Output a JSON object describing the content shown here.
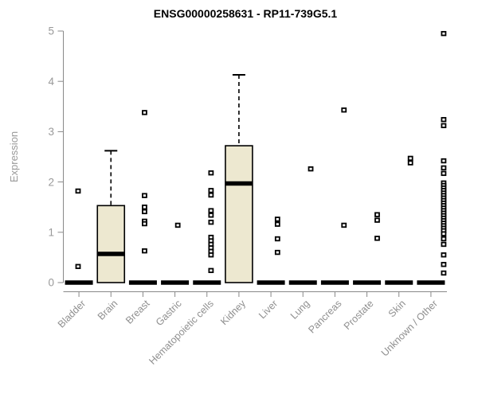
{
  "title": "ENSG00000258631 - RP11-739G5.1",
  "chart_data": {
    "type": "boxplot",
    "title": "ENSG00000258631 - RP11-739G5.1",
    "ylabel": "Expression",
    "xlabel": "",
    "ylim": [
      0,
      5
    ],
    "yticks": [
      0,
      1,
      2,
      3,
      4,
      5
    ],
    "grid": false,
    "legend": "none",
    "categories": [
      "Bladder",
      "Brain",
      "Breast",
      "Gastric",
      "Hematopoietic cells",
      "Kidney",
      "Liver",
      "Lung",
      "Pancreas",
      "Prostate",
      "Skin",
      "Unknown / Other"
    ],
    "series": [
      {
        "category": "Bladder",
        "q1": 0,
        "median": 0,
        "q3": 0,
        "whisker_low": 0,
        "whisker_high": 0,
        "outliers": [
          1.82,
          0.32
        ]
      },
      {
        "category": "Brain",
        "q1": 0,
        "median": 0.57,
        "q3": 1.53,
        "whisker_low": 0,
        "whisker_high": 2.62,
        "outliers": []
      },
      {
        "category": "Breast",
        "q1": 0,
        "median": 0,
        "q3": 0,
        "whisker_low": 0,
        "whisker_high": 0,
        "outliers": [
          3.38,
          1.73,
          1.5,
          1.41,
          1.22,
          1.17,
          0.63
        ]
      },
      {
        "category": "Gastric",
        "q1": 0,
        "median": 0,
        "q3": 0,
        "whisker_low": 0,
        "whisker_high": 0,
        "outliers": [
          1.14
        ]
      },
      {
        "category": "Hematopoietic cells",
        "q1": 0,
        "median": 0,
        "q3": 0,
        "whisker_low": 0,
        "whisker_high": 0,
        "outliers": [
          2.18,
          1.83,
          1.74,
          1.43,
          1.34,
          1.2,
          0.9,
          0.83,
          0.76,
          0.69,
          0.62,
          0.55,
          0.24
        ]
      },
      {
        "category": "Kidney",
        "q1": 0,
        "median": 1.97,
        "q3": 2.72,
        "whisker_low": 0,
        "whisker_high": 4.13,
        "outliers": []
      },
      {
        "category": "Liver",
        "q1": 0,
        "median": 0,
        "q3": 0,
        "whisker_low": 0,
        "whisker_high": 0,
        "outliers": [
          1.26,
          1.16,
          0.87,
          0.6
        ]
      },
      {
        "category": "Lung",
        "q1": 0,
        "median": 0,
        "q3": 0,
        "whisker_low": 0,
        "whisker_high": 0,
        "outliers": [
          2.26
        ]
      },
      {
        "category": "Pancreas",
        "q1": 0,
        "median": 0,
        "q3": 0,
        "whisker_low": 0,
        "whisker_high": 0,
        "outliers": [
          3.43,
          1.14
        ]
      },
      {
        "category": "Prostate",
        "q1": 0,
        "median": 0,
        "q3": 0,
        "whisker_low": 0,
        "whisker_high": 0,
        "outliers": [
          1.35,
          1.24,
          0.88
        ]
      },
      {
        "category": "Skin",
        "q1": 0,
        "median": 0,
        "q3": 0,
        "whisker_low": 0,
        "whisker_high": 0,
        "outliers": [
          2.47,
          2.38
        ]
      },
      {
        "category": "Unknown / Other",
        "q1": 0,
        "median": 0,
        "q3": 0,
        "whisker_low": 0,
        "whisker_high": 0,
        "outliers": [
          4.95,
          3.24,
          3.12,
          2.42,
          2.28,
          2.17,
          1.98,
          1.93,
          1.88,
          1.83,
          1.78,
          1.73,
          1.68,
          1.63,
          1.58,
          1.53,
          1.48,
          1.43,
          1.38,
          1.33,
          1.28,
          1.23,
          1.18,
          1.13,
          1.08,
          1.03,
          0.97,
          0.87,
          0.76,
          0.55,
          0.36,
          0.19
        ]
      }
    ],
    "colors": {
      "box_fill": "#ede8d0",
      "box_border": "#000000",
      "median": "#000000",
      "whisker": "#000000",
      "outlier": "#000000",
      "axis_line": "#888888",
      "axis_text": "#999999",
      "title_text": "#000000",
      "background": "#ffffff"
    }
  }
}
